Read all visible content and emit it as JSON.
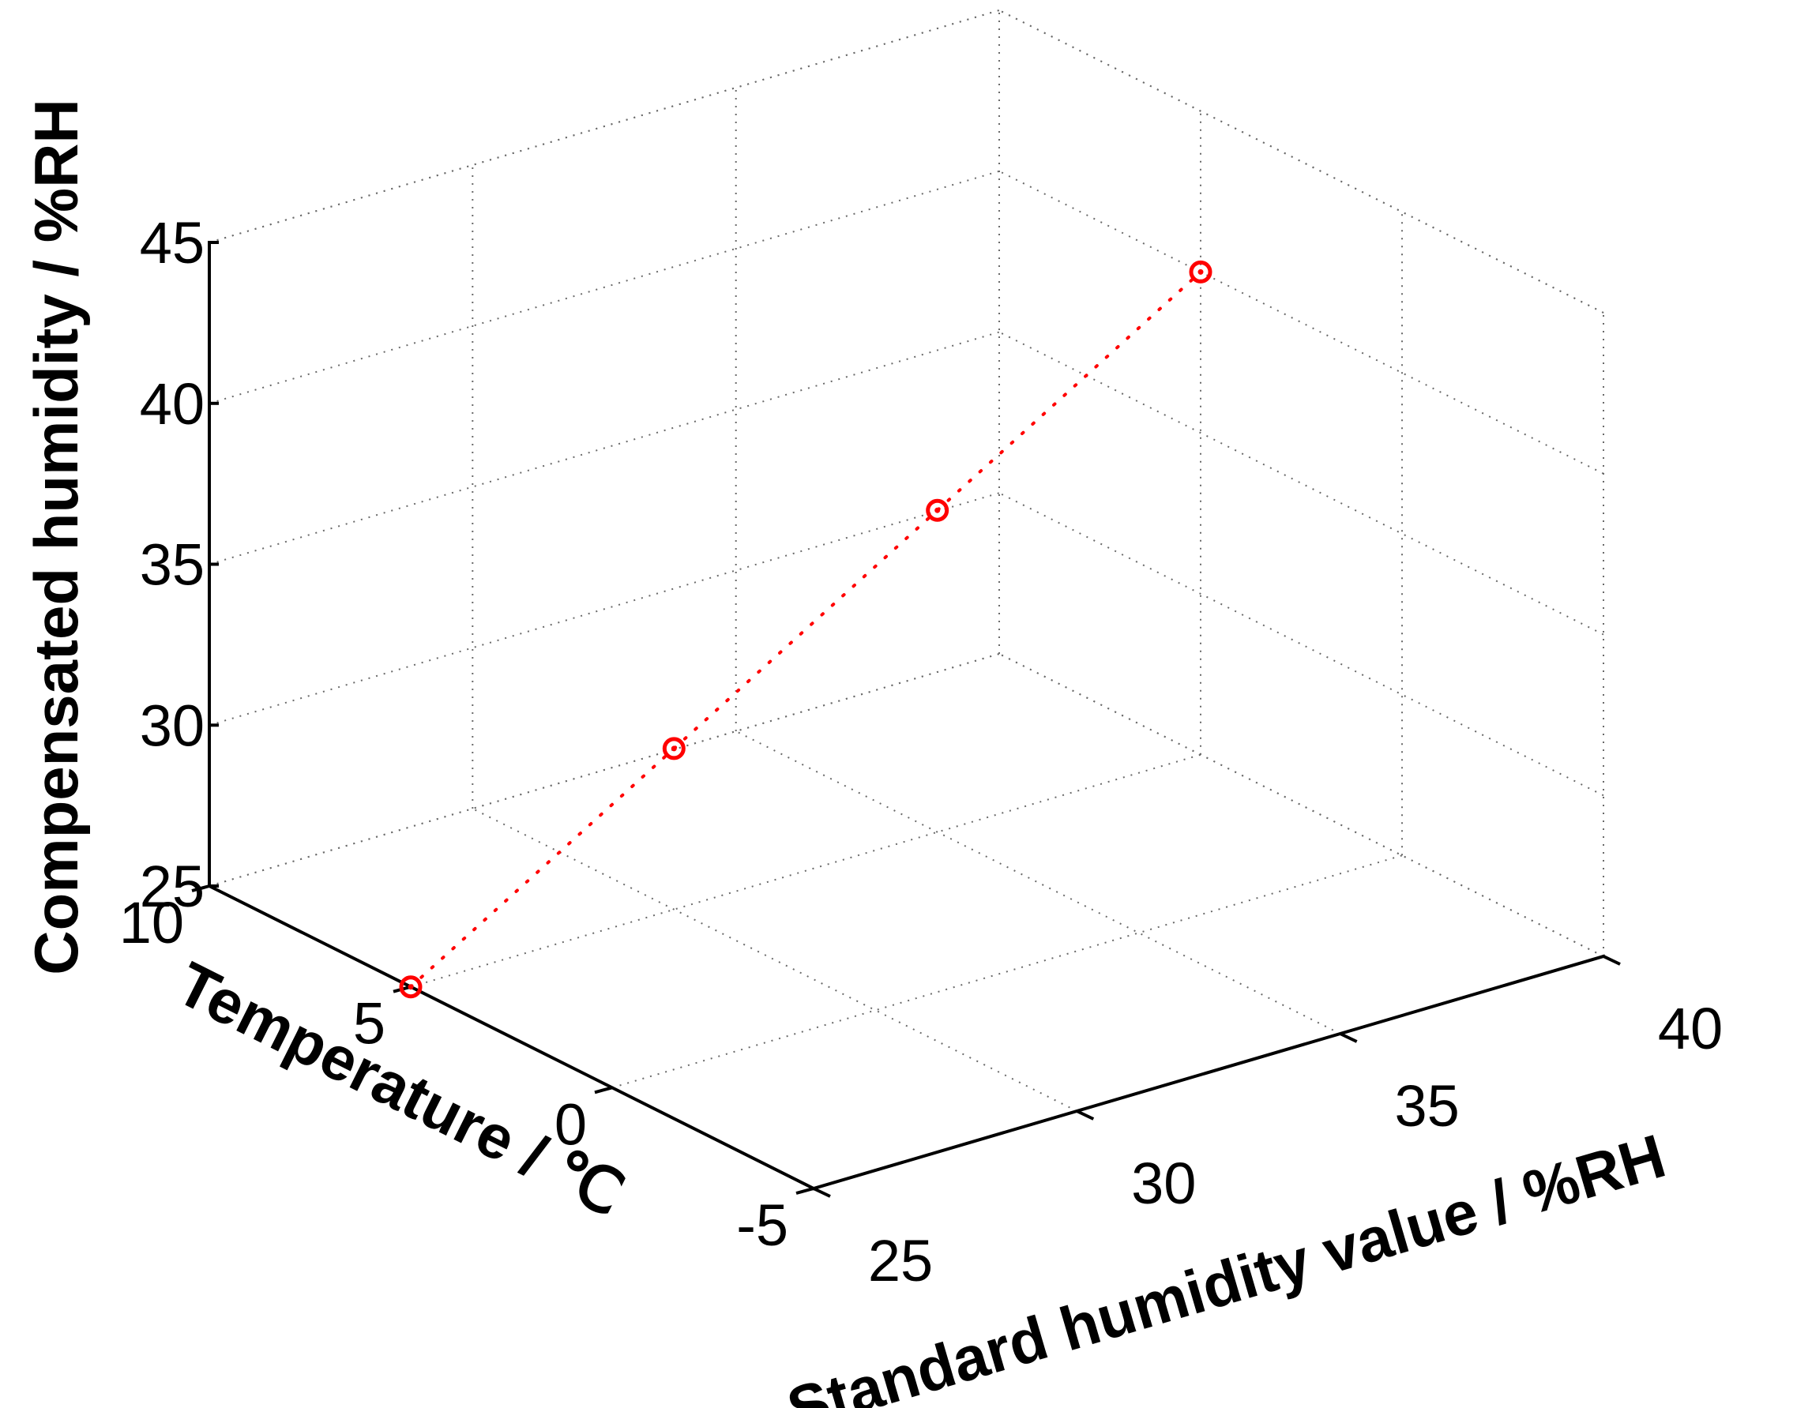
{
  "chart_data": {
    "type": "scatter",
    "projection": "3d",
    "title": "",
    "xlabel": "Standard humidity value / %RH",
    "ylabel": "Temperature / ℃",
    "zlabel": "Compensated humidity / %RH",
    "xlim": [
      25,
      40
    ],
    "ylim": [
      -5,
      10
    ],
    "zlim": [
      25,
      45
    ],
    "xticks": [
      "25",
      "30",
      "35",
      "40"
    ],
    "yticks": [
      "-5",
      "0",
      "5",
      "10"
    ],
    "zticks": [
      "25",
      "30",
      "35",
      "40",
      "45"
    ],
    "grid": true,
    "series": [
      {
        "marker": "circle-dot",
        "line_style": "dotted",
        "color": "#ff0000",
        "points": [
          {
            "x": 25,
            "y": 5,
            "z": 25
          },
          {
            "x": 30,
            "y": 5,
            "z": 30
          },
          {
            "x": 35,
            "y": 5,
            "z": 35
          },
          {
            "x": 40,
            "y": 5,
            "z": 40
          }
        ]
      }
    ]
  }
}
